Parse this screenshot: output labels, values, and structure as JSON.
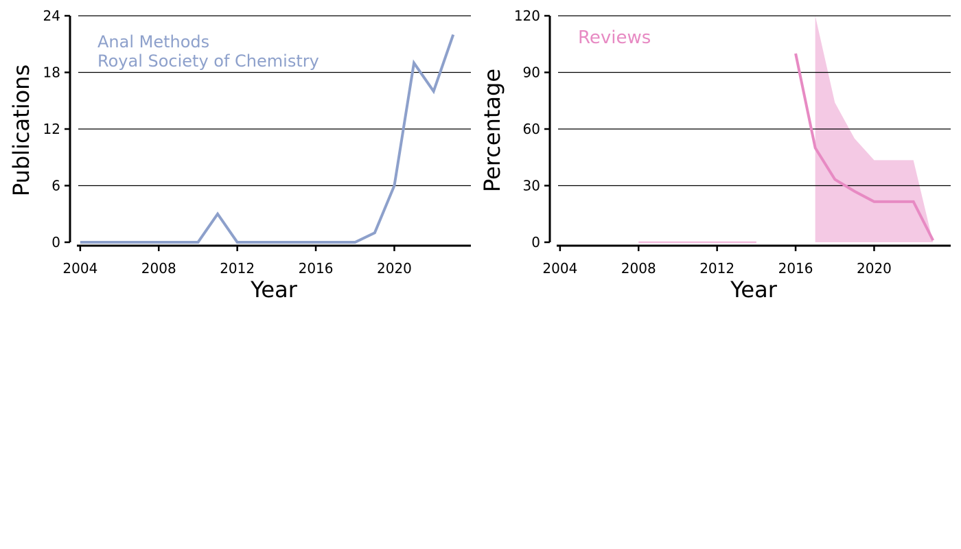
{
  "colors": {
    "publications": "#8da0cb",
    "reviews": "#e78ac3",
    "reviews_band": "#f4c9e4",
    "axis": "#000000",
    "grid": "#000000"
  },
  "chart_data": [
    {
      "type": "line",
      "title": "",
      "xlabel": "Year",
      "ylabel": "Publications",
      "xlim": [
        2003.9,
        2023.9
      ],
      "ylim": [
        0,
        24
      ],
      "xticks": [
        2004,
        2008,
        2012,
        2016,
        2020
      ],
      "yticks": [
        0,
        6,
        12,
        18,
        24
      ],
      "grid": "horizontal",
      "annotation": [
        "Anal Methods",
        "Royal Society of Chemistry"
      ],
      "x": [
        2004,
        2005,
        2006,
        2007,
        2008,
        2009,
        2010,
        2011,
        2012,
        2013,
        2014,
        2015,
        2016,
        2017,
        2018,
        2019,
        2020,
        2021,
        2022,
        2023
      ],
      "series": [
        {
          "values": [
            0,
            0,
            0,
            0,
            0,
            0,
            0,
            3,
            0,
            0,
            0,
            0,
            0,
            0,
            0,
            1,
            6,
            19,
            16,
            22
          ]
        }
      ]
    },
    {
      "type": "line",
      "title": "",
      "xlabel": "Year",
      "ylabel": "Percentage",
      "xlim": [
        2003.9,
        2023.9
      ],
      "ylim": [
        0,
        120
      ],
      "xticks": [
        2004,
        2008,
        2012,
        2016,
        2020
      ],
      "yticks": [
        0,
        30,
        60,
        90,
        120
      ],
      "grid": "horizontal",
      "annotation": [
        "Reviews"
      ],
      "series": [
        {
          "x": [
            2008,
            2009,
            2010,
            2011,
            2012,
            2013,
            2014
          ],
          "values": [
            0,
            0,
            0,
            0,
            0,
            0,
            0
          ]
        },
        {
          "x": [
            2016,
            2017,
            2018,
            2019,
            2020,
            2021,
            2022,
            2023
          ],
          "values": [
            100,
            50,
            33.3,
            27,
            21.5,
            21.5,
            21.5,
            1
          ]
        }
      ],
      "band": {
        "x": [
          2017,
          2018,
          2019,
          2020,
          2021,
          2022,
          2023
        ],
        "lower": [
          0,
          0,
          0,
          0,
          0,
          0,
          0
        ],
        "upper": [
          120,
          74,
          55,
          43.5,
          43.5,
          43.5,
          0
        ]
      }
    }
  ]
}
